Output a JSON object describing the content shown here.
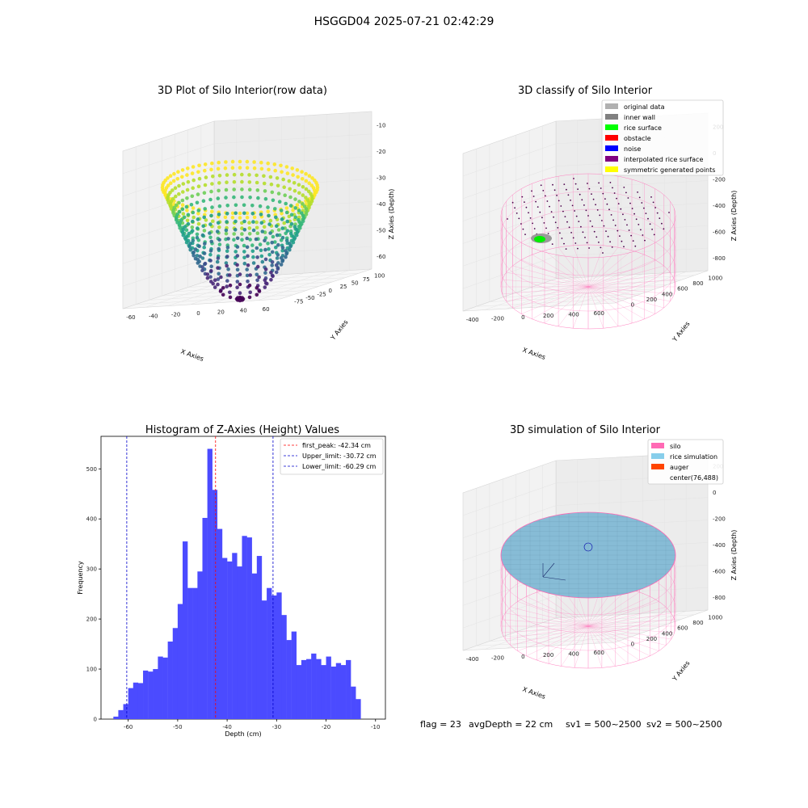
{
  "figure_title": "HSGGD04 2025-07-21 02:42:29",
  "footer": {
    "flag": "flag = 23",
    "avg_depth": "avgDepth = 22 cm",
    "sv1": "sv1 = 500~2500",
    "sv2": "sv2 = 500~2500"
  },
  "chart_data": [
    {
      "type": "scatter",
      "title": "3D Plot of Silo Interior(row data)",
      "xlabel": "X Axies",
      "ylabel": "Y Axies",
      "zlabel": "Z Axies (Depth)",
      "x_ticks": [
        "-60",
        "-40",
        "-20",
        "0",
        "20",
        "40",
        "60"
      ],
      "y_ticks": [
        "-75",
        "-50",
        "-25",
        "0",
        "25",
        "50",
        "75",
        "100"
      ],
      "z_ticks": [
        "-60",
        "-50",
        "-40",
        "-30",
        "-20",
        "-10"
      ],
      "xlim": [
        -70,
        70
      ],
      "ylim": [
        -80,
        110
      ],
      "zlim": [
        -65,
        -8
      ],
      "colormap": "viridis",
      "description_shape": "bowl",
      "rim_depth": -22,
      "bottom_depth": -62
    },
    {
      "type": "scatter",
      "title": "3D classify of Silo Interior",
      "xlabel": "X Axies",
      "ylabel": "Y Axies",
      "zlabel": "Z Axies (Depth)",
      "x_ticks": [
        "-400",
        "-200",
        "0",
        "200",
        "400",
        "600"
      ],
      "y_ticks": [
        "0",
        "200",
        "400",
        "600",
        "800",
        "1000"
      ],
      "z_ticks": [
        "-800",
        "-600",
        "-400",
        "-200",
        "0",
        "200"
      ],
      "legend": [
        {
          "label": "original data",
          "color": "#b0b0b0"
        },
        {
          "label": "inner wall",
          "color": "#808080"
        },
        {
          "label": "rice surface",
          "color": "#00ff00"
        },
        {
          "label": "obstacle",
          "color": "#ff0000"
        },
        {
          "label": "noise",
          "color": "#0000ff"
        },
        {
          "label": "interpolated rice surface",
          "color": "#800080"
        },
        {
          "label": "symmetric generated points",
          "color": "#ffff00"
        }
      ],
      "legend_loc": "upper right"
    },
    {
      "type": "bar",
      "title": "Histogram of Z-Axies (Height) Values",
      "xlabel": "Depth (cm)",
      "ylabel": "Frequency",
      "xlim": [
        -65.5,
        -8
      ],
      "ylim": [
        0,
        565
      ],
      "x_ticks": [
        -60,
        -50,
        -40,
        -30,
        -20,
        -10
      ],
      "y_ticks": [
        0,
        100,
        200,
        300,
        400,
        500
      ],
      "bar_color": "#4b4bff",
      "bin_start": -63,
      "bin_width": 1,
      "values": [
        5,
        18,
        30,
        62,
        73,
        72,
        97,
        95,
        100,
        125,
        123,
        155,
        182,
        230,
        355,
        262,
        262,
        295,
        402,
        540,
        458,
        380,
        322,
        315,
        332,
        305,
        366,
        363,
        291,
        326,
        237,
        262,
        247,
        253,
        208,
        158,
        175,
        108,
        118,
        120,
        131,
        120,
        108,
        125,
        105,
        112,
        108,
        118,
        65,
        40
      ],
      "vlines": [
        {
          "x": -42.34,
          "color": "#ff0000",
          "label": "first_peak: -42.34 cm"
        },
        {
          "x": -30.72,
          "color": "#0000cc",
          "label": "Upper_limit: -30.72 cm"
        },
        {
          "x": -60.29,
          "color": "#0000cc",
          "label": "Lower_limit: -60.29 cm"
        }
      ],
      "legend_loc": "upper right"
    },
    {
      "type": "scatter",
      "title": "3D simulation of Silo Interior",
      "xlabel": "X Axies",
      "ylabel": "Y Axies",
      "zlabel": "Z Axies (Depth)",
      "x_ticks": [
        "-400",
        "-200",
        "0",
        "200",
        "400",
        "600"
      ],
      "y_ticks": [
        "0",
        "200",
        "400",
        "600",
        "800",
        "1000"
      ],
      "z_ticks": [
        "-800",
        "-600",
        "-400",
        "-200",
        "0",
        "200"
      ],
      "legend": [
        {
          "label": "silo",
          "color": "#ff69b4"
        },
        {
          "label": "rice simulation",
          "color": "#87ceeb"
        },
        {
          "label": "auger",
          "color": "#ff4500"
        },
        {
          "label": "center(76,488)",
          "color": ""
        }
      ],
      "legend_loc": "upper right"
    }
  ]
}
